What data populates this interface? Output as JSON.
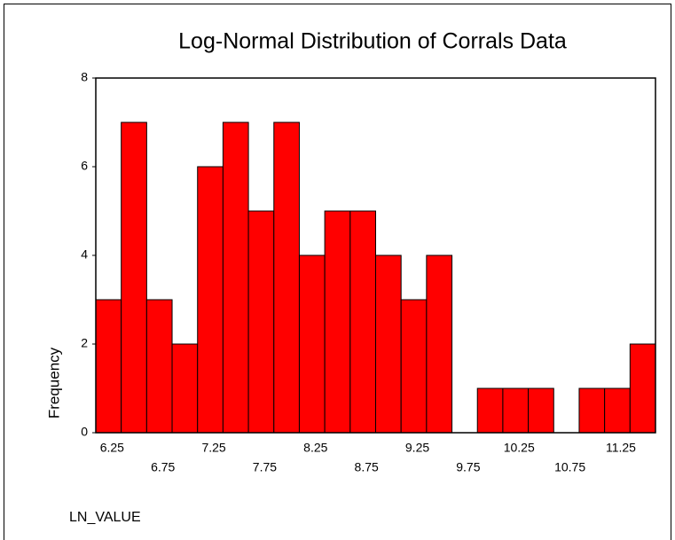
{
  "chart_data": {
    "type": "histogram",
    "title": "Log-Normal Distribution of Corrals Data",
    "x_label": "LN_VALUE",
    "y_label": "Frequency",
    "bins": [
      6.125,
      6.375,
      6.625,
      6.875,
      7.125,
      7.375,
      7.625,
      7.875,
      8.125,
      8.375,
      8.625,
      8.875,
      9.125,
      9.375,
      9.625,
      9.875,
      10.125,
      10.375,
      10.625,
      10.875,
      11.125,
      11.375,
      11.625
    ],
    "values": [
      3,
      7,
      3,
      2,
      6,
      7,
      5,
      7,
      4,
      5,
      5,
      4,
      3,
      4,
      0,
      1,
      1,
      1,
      0,
      1,
      1,
      2
    ],
    "color": "#ff0000",
    "xlim": [
      6.125,
      11.625
    ],
    "xticks": [
      6.25,
      6.75,
      7.25,
      7.75,
      8.25,
      8.75,
      9.25,
      9.75,
      10.25,
      10.75,
      11.25
    ],
    "ylim": [
      0,
      8
    ],
    "yticks": [
      0,
      2,
      4,
      6,
      8
    ]
  }
}
